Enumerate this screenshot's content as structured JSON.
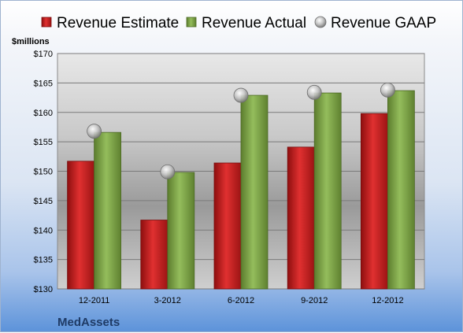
{
  "chart_data": {
    "type": "bar",
    "categories": [
      "12-2011",
      "3-2012",
      "6-2012",
      "9-2012",
      "12-2012"
    ],
    "series": [
      {
        "name": "Revenue Estimate",
        "values": [
          151.7,
          141.7,
          151.4,
          154.1,
          159.8
        ],
        "color": "#cc1f1f",
        "kind": "bar"
      },
      {
        "name": "Revenue Actual",
        "values": [
          156.6,
          149.8,
          162.9,
          163.3,
          163.7
        ],
        "color": "#80a84a",
        "kind": "bar"
      },
      {
        "name": "Revenue GAAP",
        "values": [
          156.8,
          149.9,
          162.9,
          163.4,
          163.8
        ],
        "color": "#b8b8b8",
        "kind": "marker"
      }
    ],
    "ylabel": "$millions",
    "ylim": [
      130,
      170
    ],
    "yticks": [
      "$130",
      "$135",
      "$140",
      "$145",
      "$150",
      "$155",
      "$160",
      "$165",
      "$170"
    ],
    "ytick_values": [
      130,
      135,
      140,
      145,
      150,
      155,
      160,
      165,
      170
    ],
    "grid": true,
    "legend_position": "top"
  },
  "company": "MedAssets"
}
